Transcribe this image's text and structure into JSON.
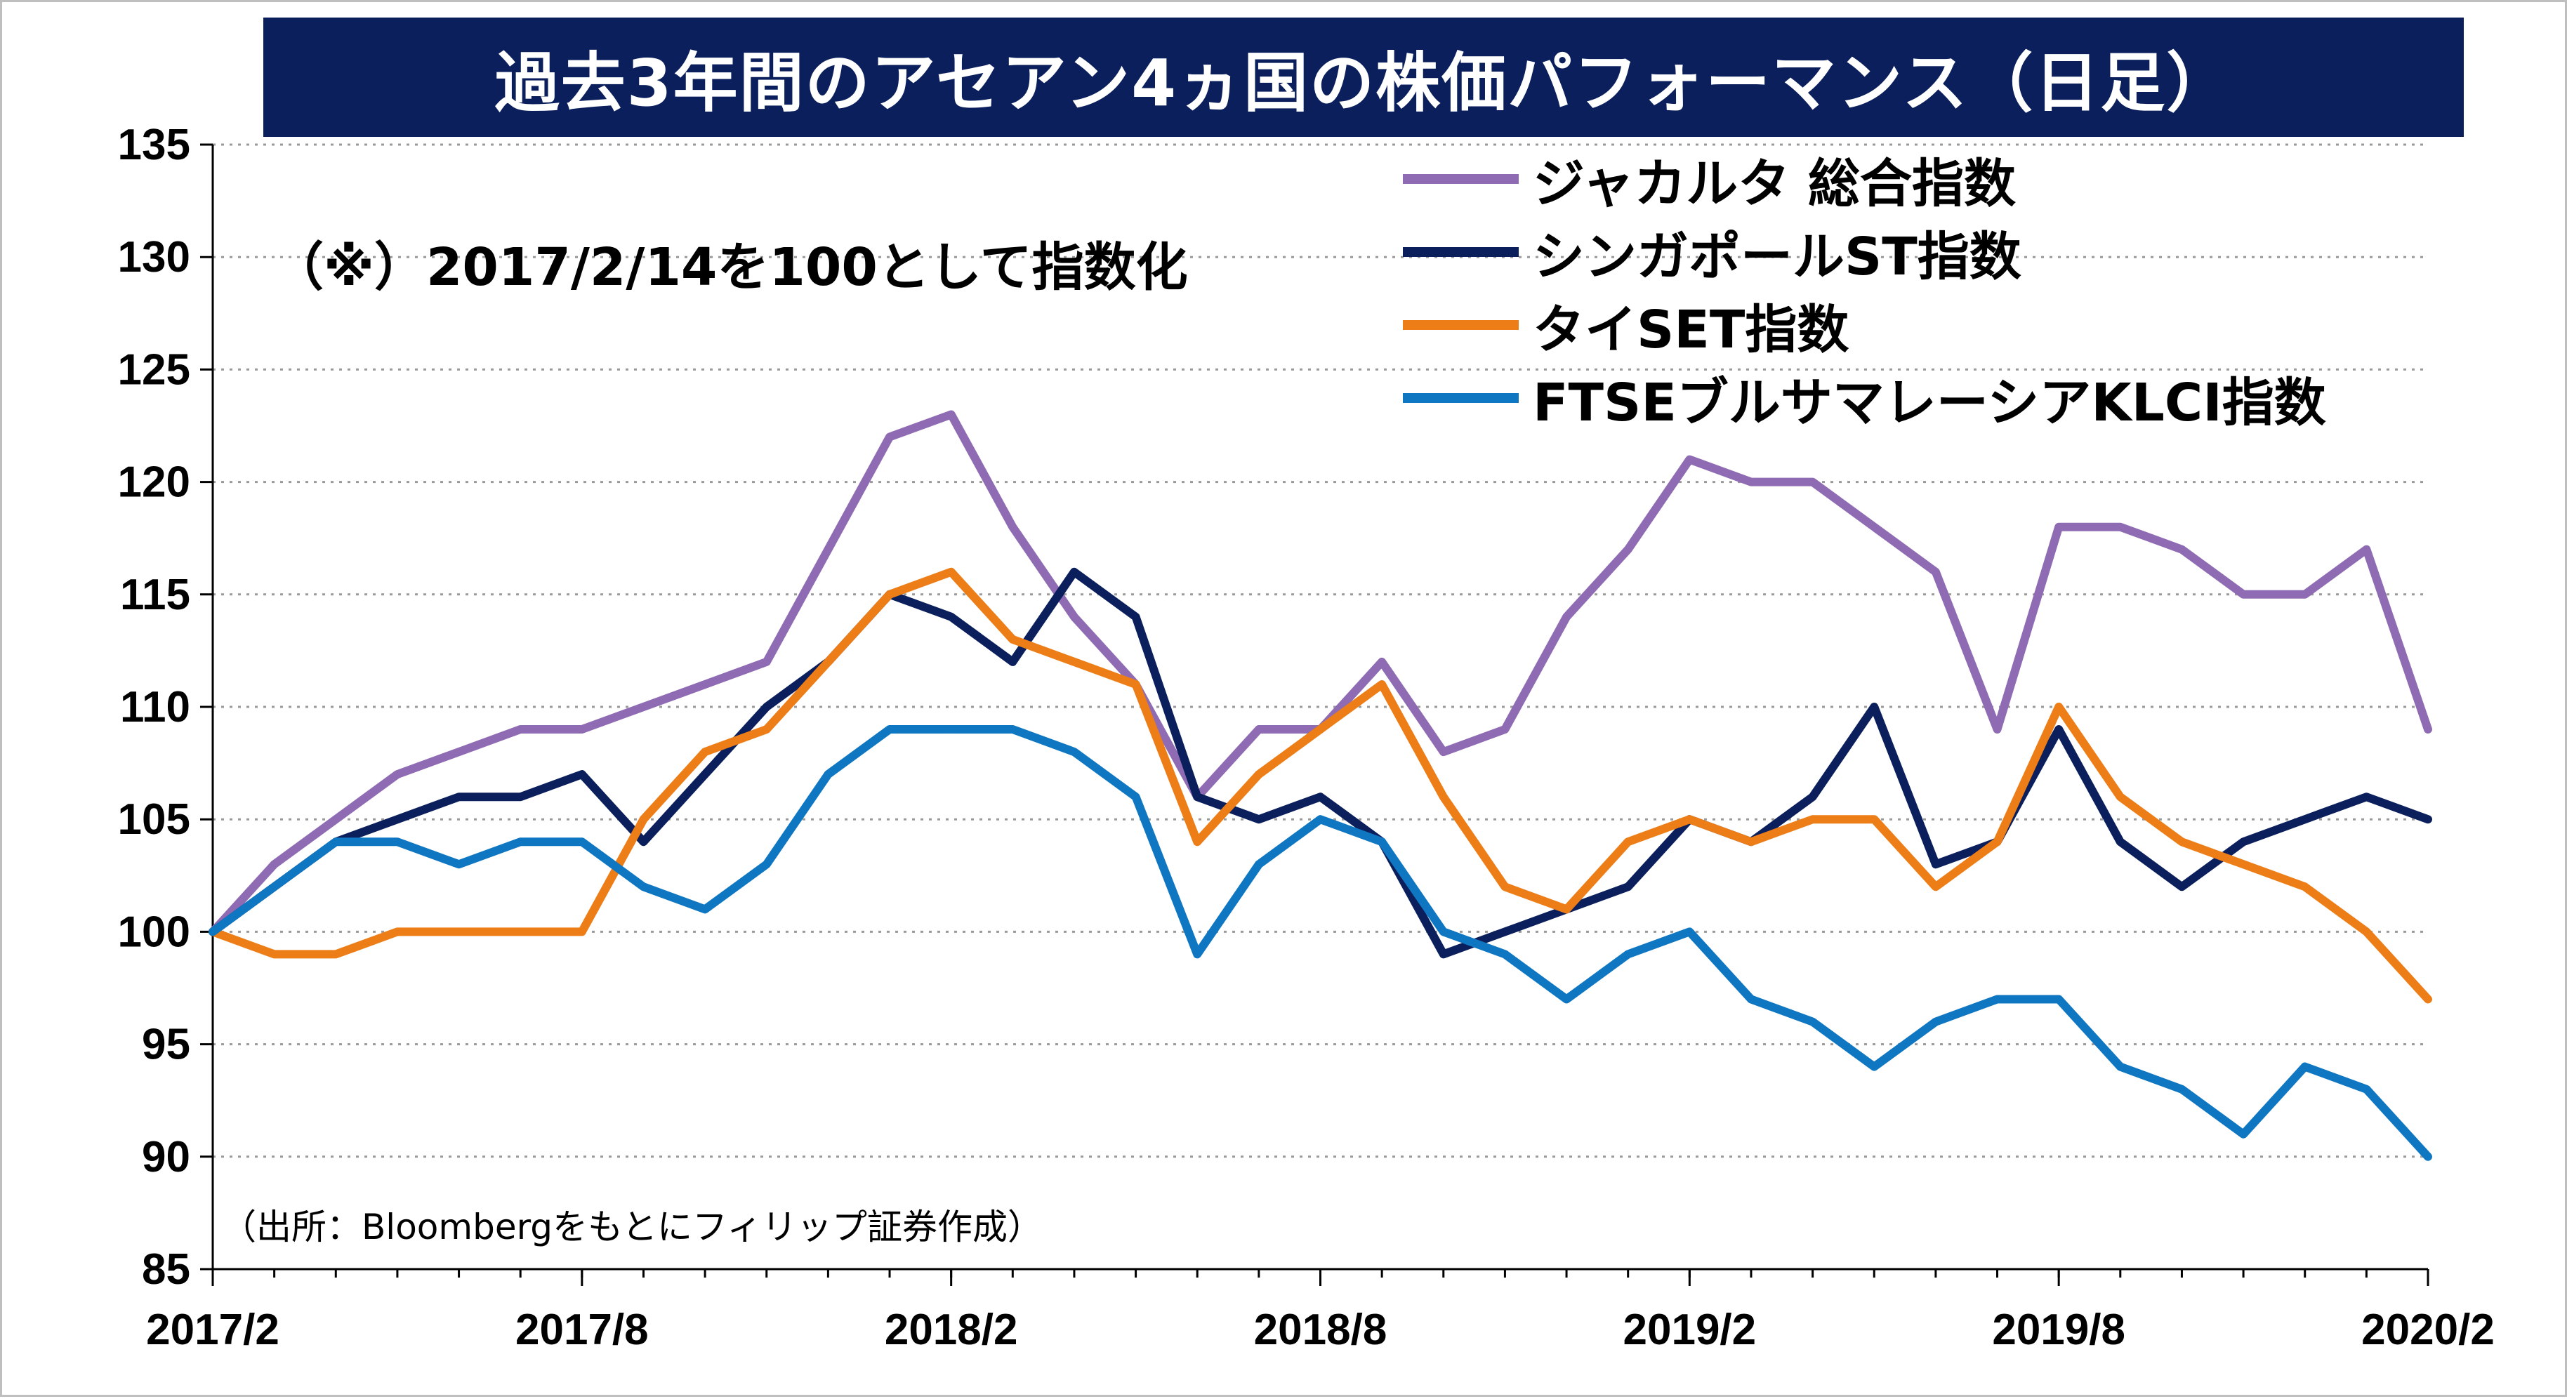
{
  "title": "過去3年間のアセアン4ヵ国の株価パフォーマンス（日足）",
  "note": "（※）2017/2/14を100として指数化",
  "source": "（出所：Bloombergをもとにフィリップ証券作成）",
  "chart_data": {
    "type": "line",
    "x_tick_labels": [
      "2017/2",
      "2017/8",
      "2018/2",
      "2018/8",
      "2019/2",
      "2019/8",
      "2020/2"
    ],
    "x": [
      "2017/2",
      "2017/3",
      "2017/4",
      "2017/5",
      "2017/6",
      "2017/7",
      "2017/8",
      "2017/9",
      "2017/10",
      "2017/11",
      "2017/12",
      "2018/1",
      "2018/2",
      "2018/3",
      "2018/4",
      "2018/5",
      "2018/6",
      "2018/7",
      "2018/8",
      "2018/9",
      "2018/10",
      "2018/11",
      "2018/12",
      "2019/1",
      "2019/2",
      "2019/3",
      "2019/4",
      "2019/5",
      "2019/6",
      "2019/7",
      "2019/8",
      "2019/9",
      "2019/10",
      "2019/11",
      "2019/12",
      "2020/1",
      "2020/2"
    ],
    "ylim": [
      85,
      135
    ],
    "y_ticks": [
      85,
      90,
      95,
      100,
      105,
      110,
      115,
      120,
      125,
      130,
      135
    ],
    "grid": true,
    "legend_position": "top-right",
    "series": [
      {
        "name": "ジャカルタ 総合指数",
        "color": "#8e6bb3",
        "values": [
          100,
          103,
          105,
          107,
          108,
          109,
          109,
          110,
          111,
          112,
          117,
          122,
          123,
          118,
          114,
          111,
          106,
          109,
          109,
          112,
          108,
          109,
          114,
          117,
          121,
          120,
          120,
          118,
          116,
          109,
          118,
          118,
          117,
          115,
          115,
          117,
          109
        ]
      },
      {
        "name": "シンガポールST指数",
        "color": "#0b1f5c",
        "values": [
          100,
          102,
          104,
          105,
          106,
          106,
          107,
          104,
          107,
          110,
          112,
          115,
          114,
          112,
          116,
          114,
          106,
          105,
          106,
          104,
          99,
          100,
          101,
          102,
          105,
          104,
          106,
          110,
          103,
          104,
          109,
          104,
          102,
          104,
          105,
          106,
          105
        ]
      },
      {
        "name": "タイSET指数",
        "color": "#ed7d16",
        "values": [
          100,
          99,
          99,
          100,
          100,
          100,
          100,
          105,
          108,
          109,
          112,
          115,
          116,
          113,
          112,
          111,
          104,
          107,
          109,
          111,
          106,
          102,
          101,
          104,
          105,
          104,
          105,
          105,
          102,
          104,
          110,
          106,
          104,
          103,
          102,
          100,
          97
        ]
      },
      {
        "name": "FTSEブルサマレーシアKLCI指数",
        "color": "#0f77c2",
        "values": [
          100,
          102,
          104,
          104,
          103,
          104,
          104,
          102,
          101,
          103,
          107,
          109,
          109,
          109,
          108,
          106,
          99,
          103,
          105,
          104,
          100,
          99,
          97,
          99,
          100,
          97,
          96,
          94,
          96,
          97,
          97,
          94,
          93,
          91,
          94,
          93,
          90
        ]
      }
    ]
  }
}
